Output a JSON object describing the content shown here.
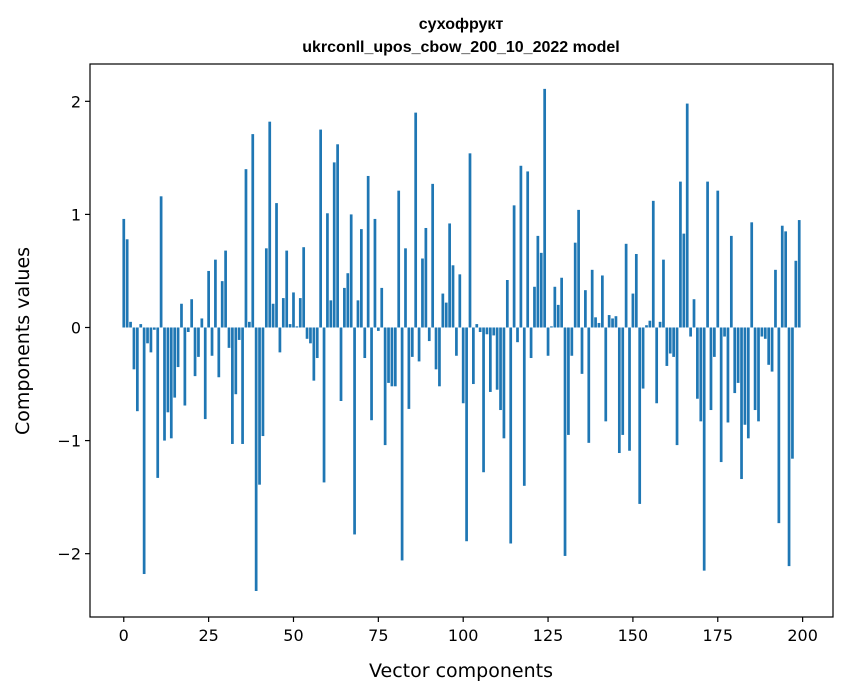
{
  "chart_data": {
    "type": "bar",
    "title": "сухофрукт",
    "subtitle": "ukrconll_upos_cbow_200_10_2022 model",
    "xlabel": "Vector components",
    "ylabel": "Components values",
    "xlim": [
      -9.95,
      208.95
    ],
    "ylim": [
      -2.56,
      2.33
    ],
    "xticks": [
      0,
      25,
      50,
      75,
      100,
      125,
      150,
      175,
      200
    ],
    "xtick_labels": [
      "0",
      "25",
      "50",
      "75",
      "100",
      "125",
      "150",
      "175",
      "200"
    ],
    "yticks": [
      -2,
      -1,
      0,
      1,
      2
    ],
    "ytick_labels": [
      "−2",
      "−1",
      "0",
      "1",
      "2"
    ],
    "grid": false,
    "color": "#1f77b4",
    "x": [
      0,
      1,
      2,
      3,
      4,
      5,
      6,
      7,
      8,
      9,
      10,
      11,
      12,
      13,
      14,
      15,
      16,
      17,
      18,
      19,
      20,
      21,
      22,
      23,
      24,
      25,
      26,
      27,
      28,
      29,
      30,
      31,
      32,
      33,
      34,
      35,
      36,
      37,
      38,
      39,
      40,
      41,
      42,
      43,
      44,
      45,
      46,
      47,
      48,
      49,
      50,
      51,
      52,
      53,
      54,
      55,
      56,
      57,
      58,
      59,
      60,
      61,
      62,
      63,
      64,
      65,
      66,
      67,
      68,
      69,
      70,
      71,
      72,
      73,
      74,
      75,
      76,
      77,
      78,
      79,
      80,
      81,
      82,
      83,
      84,
      85,
      86,
      87,
      88,
      89,
      90,
      91,
      92,
      93,
      94,
      95,
      96,
      97,
      98,
      99,
      100,
      101,
      102,
      103,
      104,
      105,
      106,
      107,
      108,
      109,
      110,
      111,
      112,
      113,
      114,
      115,
      116,
      117,
      118,
      119,
      120,
      121,
      122,
      123,
      124,
      125,
      126,
      127,
      128,
      129,
      130,
      131,
      132,
      133,
      134,
      135,
      136,
      137,
      138,
      139,
      140,
      141,
      142,
      143,
      144,
      145,
      146,
      147,
      148,
      149,
      150,
      151,
      152,
      153,
      154,
      155,
      156,
      157,
      158,
      159,
      160,
      161,
      162,
      163,
      164,
      165,
      166,
      167,
      168,
      169,
      170,
      171,
      172,
      173,
      174,
      175,
      176,
      177,
      178,
      179,
      180,
      181,
      182,
      183,
      184,
      185,
      186,
      187,
      188,
      189,
      190,
      191,
      192,
      193,
      194,
      195,
      196,
      197,
      198,
      199
    ],
    "values": [
      0.96,
      0.78,
      0.05,
      -0.37,
      -0.74,
      0.03,
      -2.18,
      -0.14,
      -0.22,
      -0.02,
      -1.33,
      1.16,
      -1.0,
      -0.75,
      -0.98,
      -0.62,
      -0.35,
      0.21,
      -0.69,
      -0.04,
      0.25,
      -0.43,
      -0.26,
      0.08,
      -0.81,
      0.5,
      -0.25,
      0.6,
      -0.44,
      0.41,
      0.68,
      -0.18,
      -1.03,
      -0.59,
      -0.11,
      -1.03,
      1.4,
      0.05,
      1.71,
      -2.33,
      -1.39,
      -0.96,
      0.7,
      1.82,
      0.21,
      1.1,
      -0.22,
      0.26,
      0.68,
      0.03,
      0.31,
      0.01,
      0.26,
      0.71,
      -0.1,
      -0.14,
      -0.47,
      -0.27,
      1.75,
      -1.37,
      1.01,
      0.24,
      1.46,
      1.62,
      -0.65,
      0.35,
      0.48,
      1.0,
      -1.83,
      0.24,
      0.87,
      -0.27,
      1.34,
      -0.82,
      0.96,
      -0.03,
      0.35,
      -1.04,
      -0.49,
      -0.52,
      -0.52,
      1.21,
      -2.06,
      0.7,
      -0.72,
      -0.26,
      1.9,
      -0.3,
      0.61,
      0.88,
      -0.12,
      1.27,
      -0.37,
      -0.52,
      0.3,
      0.22,
      0.92,
      0.55,
      -0.25,
      0.47,
      -0.67,
      -1.89,
      1.54,
      -0.5,
      0.03,
      -0.04,
      -1.28,
      -0.06,
      -0.57,
      -0.07,
      -0.55,
      -0.73,
      -0.98,
      0.42,
      -1.91,
      1.08,
      -0.13,
      1.43,
      -1.4,
      1.38,
      -0.27,
      0.36,
      0.81,
      0.66,
      2.11,
      -0.25,
      0.01,
      0.36,
      0.2,
      0.44,
      -2.02,
      -0.95,
      -0.25,
      0.75,
      1.04,
      -0.41,
      0.33,
      -1.02,
      0.51,
      0.09,
      0.04,
      0.46,
      -0.83,
      0.11,
      0.08,
      0.1,
      -1.11,
      -0.95,
      0.74,
      -1.09,
      0.3,
      0.65,
      -1.56,
      -0.54,
      0.02,
      0.06,
      1.12,
      -0.67,
      0.05,
      0.6,
      -0.34,
      -0.23,
      -0.26,
      -1.04,
      1.29,
      0.83,
      1.98,
      -0.08,
      0.25,
      -0.63,
      -0.83,
      -2.15,
      1.29,
      -0.73,
      -0.26,
      1.21,
      -1.19,
      -0.08,
      -0.84,
      0.81,
      -0.58,
      -0.49,
      -1.34,
      -0.86,
      -0.98,
      0.93,
      -0.73,
      -0.83,
      -0.08,
      -0.1,
      -0.33,
      -0.39,
      0.51,
      -1.73,
      0.9,
      0.85,
      -2.11,
      -1.16,
      0.59,
      0.95
    ]
  }
}
